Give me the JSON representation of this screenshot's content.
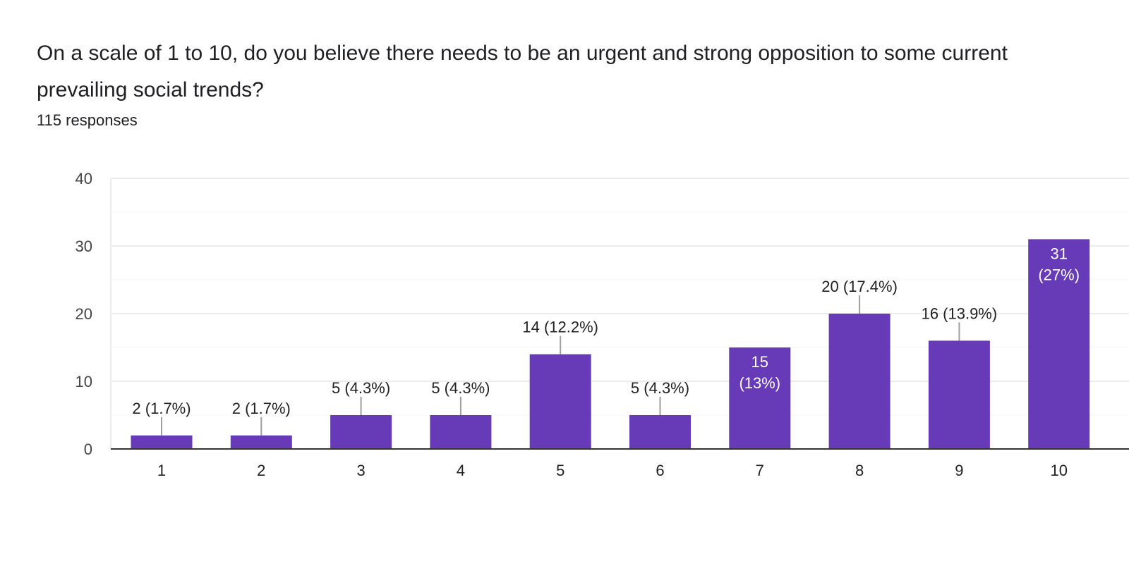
{
  "question": {
    "title": "On a scale of 1 to 10, do you believe there needs to be an urgent and strong opposition to some current prevailing social trends?",
    "responses": "115 responses"
  },
  "colors": {
    "bar": "#673ab7",
    "gridline": "#ececec",
    "axis": "#333333",
    "leader": "#9e9e9e"
  },
  "chart_data": {
    "type": "bar",
    "categories": [
      "1",
      "2",
      "3",
      "4",
      "5",
      "6",
      "7",
      "8",
      "9",
      "10"
    ],
    "values": [
      2,
      2,
      5,
      5,
      14,
      5,
      15,
      20,
      16,
      31
    ],
    "data_labels": [
      "2 (1.7%)",
      "2 (1.7%)",
      "5 (4.3%)",
      "5 (4.3%)",
      "14 (12.2%)",
      "5 (4.3%)",
      "15 (13%)",
      "20 (17.4%)",
      "16 (13.9%)",
      "31 (27%)"
    ],
    "label_inside": [
      false,
      false,
      false,
      false,
      false,
      false,
      true,
      false,
      false,
      true
    ],
    "yticks": [
      0,
      10,
      20,
      30,
      40
    ],
    "ylim": [
      0,
      40
    ],
    "grid": true,
    "title": "",
    "xlabel": "",
    "ylabel": ""
  }
}
